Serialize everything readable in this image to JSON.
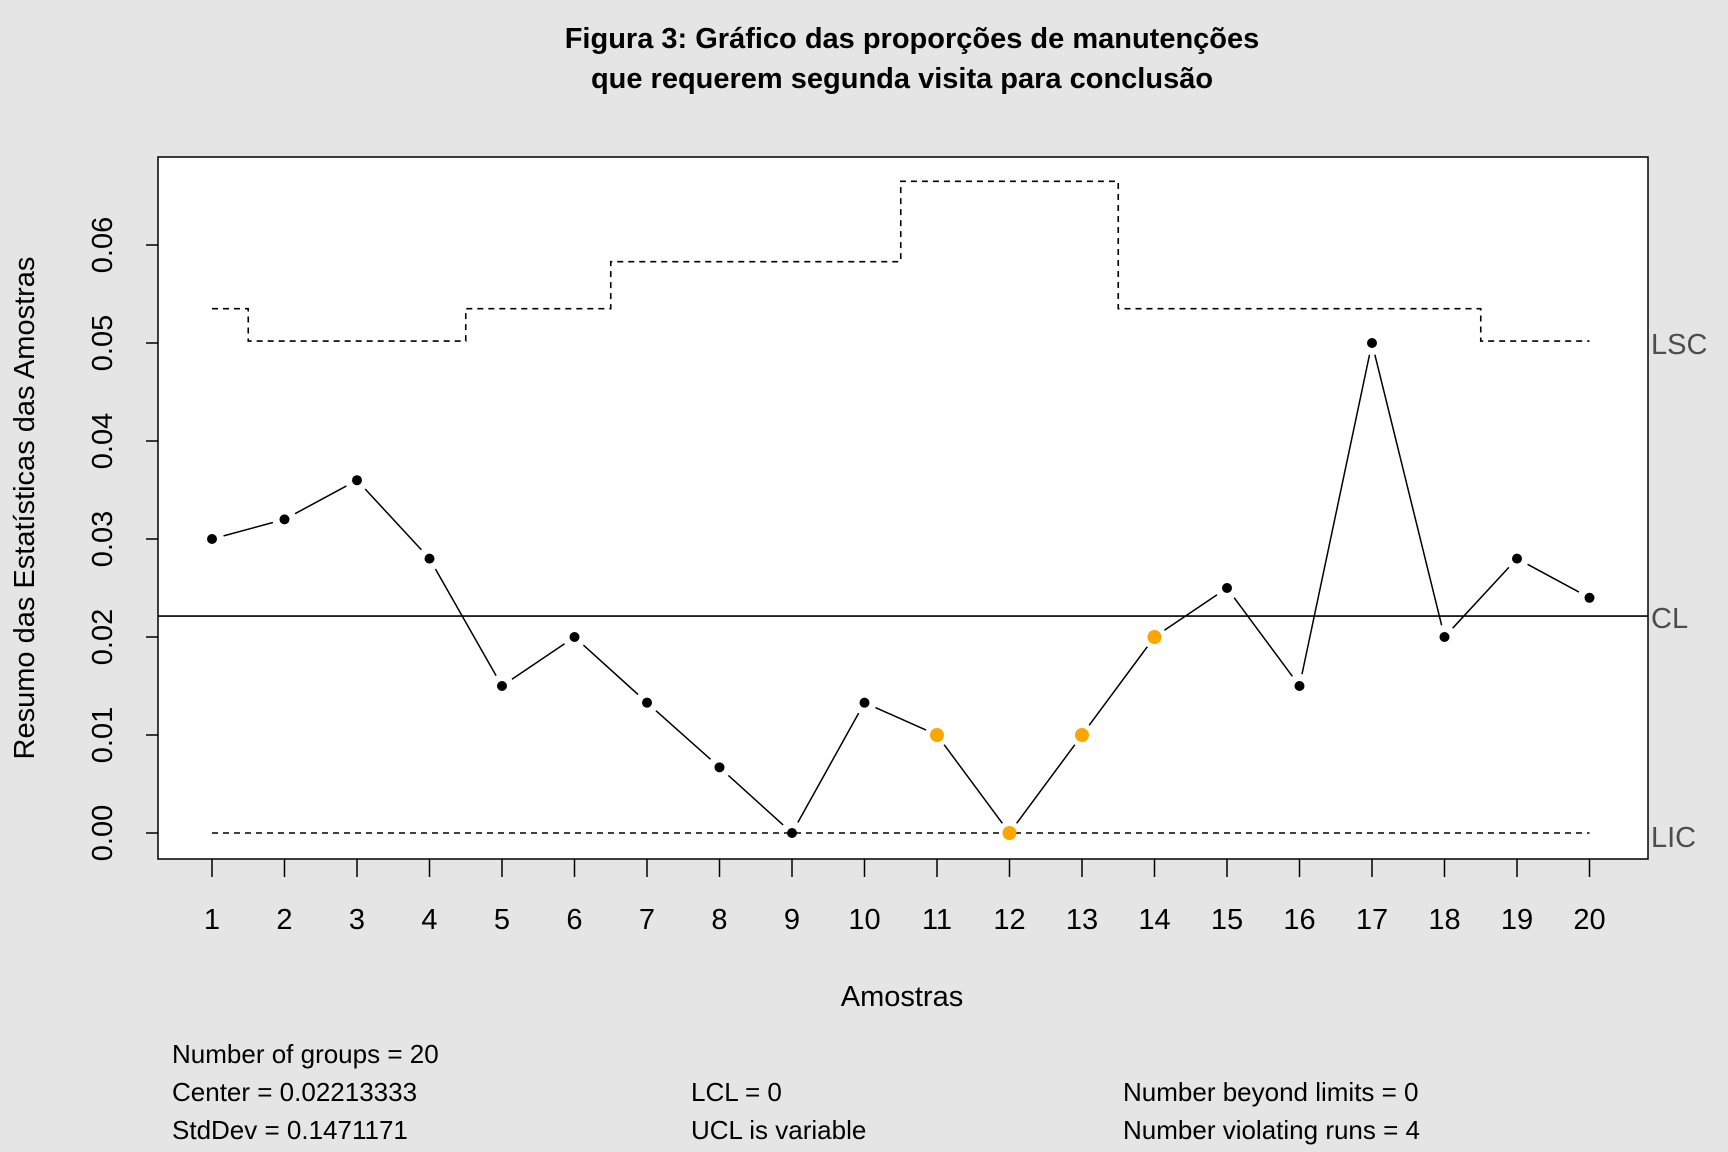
{
  "chart_data": {
    "type": "line",
    "title": [
      "Figura 3: Gráfico das proporções de manutenções",
      "que requerem segunda visita para conclusão"
    ],
    "xlabel": "Amostras",
    "ylabel": "Resumo das Estatísticas das Amostras",
    "ylim": [
      -0.0027,
      0.0692
    ],
    "x_ticks": [
      "1",
      "2",
      "3",
      "4",
      "5",
      "6",
      "7",
      "8",
      "9",
      "10",
      "11",
      "12",
      "13",
      "14",
      "15",
      "16",
      "17",
      "18",
      "19",
      "20"
    ],
    "y_ticks": [
      "0.00",
      "0.01",
      "0.02",
      "0.03",
      "0.04",
      "0.05",
      "0.06"
    ],
    "x": [
      1,
      2,
      3,
      4,
      5,
      6,
      7,
      8,
      9,
      10,
      11,
      12,
      13,
      14,
      15,
      16,
      17,
      18,
      19,
      20
    ],
    "values": [
      0.03,
      0.032,
      0.036,
      0.028,
      0.015,
      0.02,
      0.0133,
      0.0067,
      0.0,
      0.0133,
      0.01,
      0.0,
      0.01,
      0.02,
      0.025,
      0.015,
      0.05,
      0.02,
      0.028,
      0.024
    ],
    "highlighted_points": [
      11,
      12,
      13,
      14
    ],
    "highlight_color": "#ffa500",
    "point_color": "#000000",
    "center_line": 0.02213333,
    "lcl": [
      0,
      0,
      0,
      0,
      0,
      0,
      0,
      0,
      0,
      0,
      0,
      0,
      0,
      0,
      0,
      0,
      0,
      0,
      0,
      0
    ],
    "ucl": [
      0.0535,
      0.0502,
      0.0502,
      0.0502,
      0.0535,
      0.0535,
      0.0583,
      0.0583,
      0.0583,
      0.0583,
      0.0665,
      0.0665,
      0.0665,
      0.0535,
      0.0535,
      0.0535,
      0.0535,
      0.0535,
      0.0502,
      0.0502
    ],
    "limit_labels": {
      "ucl": "LSC",
      "cl": "CL",
      "lcl": "LIC"
    },
    "grid": false
  },
  "stats": {
    "col1": [
      "Number of groups = 20",
      "Center = 0.02213333",
      "StdDev = 0.1471171"
    ],
    "col2": [
      "LCL = 0",
      "UCL is variable"
    ],
    "col3": [
      "Number beyond limits = 0",
      "Number violating runs = 4"
    ]
  }
}
